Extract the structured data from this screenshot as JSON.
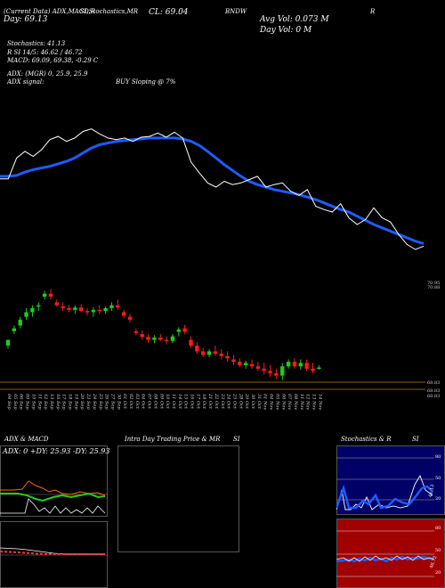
{
  "header": {
    "ticker_line": "(Current Data) ADX,MACD,R",
    "stoch_line": "SI,Stochastics,MR",
    "cl_label": "CL: 69.04",
    "symbol": "BNDW",
    "right_label": "R",
    "day_line": "Day: 69.13",
    "avg_vol": "Avg Vol: 0.073 M",
    "day_vol": "Day Vol: 0 M"
  },
  "indicators": {
    "stochastics": "Stochastics: 41.13",
    "rsi_line": "R SI 14/5: 46.62 / 46.72",
    "macd_line": "MACD: 69.09, 69.38, -0.29 C",
    "adx_line": "ADX: (MGR) 0, 25.9, 25.9",
    "adx_signal_label": "ADX signal:",
    "adx_signal_value": "BUY Sloping @ 7%"
  },
  "price_axis": {
    "top_labels": [
      "70.95",
      "70.88"
    ],
    "bottom_labels": [
      "68.83",
      "68.83",
      "68.83"
    ]
  },
  "dates": [
    "04 Sep",
    "05 Sep",
    "06 Sep",
    "09 Sep",
    "10 Sep",
    "11 Sep",
    "12 Sep",
    "13 Sep",
    "16 Sep",
    "17 Sep",
    "18 Sep",
    "19 Sep",
    "20 Sep",
    "23 Sep",
    "24 Sep",
    "25 Sep",
    "26 Sep",
    "27 Sep",
    "30 Sep",
    "01 Oct",
    "02 Oct",
    "03 Oct",
    "04 Oct",
    "07 Oct",
    "08 Oct",
    "09 Oct",
    "10 Oct",
    "11 Oct",
    "14 Oct",
    "15 Oct",
    "16 Oct",
    "17 Oct",
    "18 Oct",
    "21 Oct",
    "22 Oct",
    "23 Oct",
    "24 Oct",
    "25 Oct",
    "28 Oct",
    "29 Oct",
    "30 Oct",
    "31 Oct",
    "01 Nov",
    "04 Nov",
    "05 Nov",
    "06 Nov",
    "07 Nov",
    "08 Nov",
    "11 Nov",
    "12 Nov",
    "13 Nov",
    "14 Nov"
  ],
  "panels": {
    "adx_title": "ADX & MACD",
    "adx_readout": "ADX: 0  +DY: 25.93  -DY: 25.93",
    "intraday_title": "Intra Day Trading Price & MR",
    "intraday_si": "SI",
    "stoch_title": "Stochastics & R",
    "stoch_si": "SI",
    "stoch_axis": [
      "80",
      "50",
      "20"
    ],
    "stoch_value": "41.13",
    "rsi_axis": [
      "80",
      "50",
      "20"
    ],
    "rsi_value": "46.72"
  },
  "colors": {
    "background": "#000000",
    "price_line": "#ffffff",
    "moving_average": "#1e5bff",
    "up_candle": "#1fcc1f",
    "down_candle": "#ff1a1a",
    "rsi_panel_bg": "#a00000",
    "stoch_panel_bg": "#000066",
    "level_line": "#b8860b"
  },
  "chart_data": {
    "type": "line",
    "x": [
      "04 Sep",
      "05 Sep",
      "06 Sep",
      "09 Sep",
      "10 Sep",
      "11 Sep",
      "12 Sep",
      "13 Sep",
      "16 Sep",
      "17 Sep",
      "18 Sep",
      "19 Sep",
      "20 Sep",
      "23 Sep",
      "24 Sep",
      "25 Sep",
      "26 Sep",
      "27 Sep",
      "30 Sep",
      "01 Oct",
      "02 Oct",
      "03 Oct",
      "04 Oct",
      "07 Oct",
      "08 Oct",
      "09 Oct",
      "10 Oct",
      "11 Oct",
      "14 Oct",
      "15 Oct",
      "16 Oct",
      "17 Oct",
      "18 Oct",
      "21 Oct",
      "22 Oct",
      "23 Oct",
      "24 Oct",
      "25 Oct",
      "28 Oct",
      "29 Oct",
      "30 Oct",
      "31 Oct",
      "01 Nov",
      "04 Nov",
      "05 Nov",
      "06 Nov",
      "07 Nov",
      "08 Nov",
      "11 Nov",
      "12 Nov",
      "13 Nov",
      "14 Nov"
    ],
    "series": [
      {
        "values": [
          69.85,
          69.85,
          70.1,
          70.18,
          70.12,
          70.2,
          70.32,
          70.36,
          70.3,
          70.34,
          70.42,
          70.45,
          70.39,
          70.34,
          70.32,
          70.34,
          70.3,
          70.35,
          70.36,
          70.4,
          70.35,
          70.41,
          70.34,
          70.05,
          69.92,
          69.8,
          69.75,
          69.82,
          69.78,
          69.8,
          69.84,
          69.88,
          69.75,
          69.78,
          69.8,
          69.7,
          69.65,
          69.72,
          69.52,
          69.48,
          69.45,
          69.55,
          69.38,
          69.3,
          69.36,
          69.5,
          69.38,
          69.33,
          69.18,
          69.06,
          69.0,
          69.04
        ]
      },
      {
        "values": [
          69.88,
          69.88,
          69.89,
          69.93,
          69.96,
          69.98,
          70.0,
          70.03,
          70.06,
          70.1,
          70.16,
          70.22,
          70.26,
          70.28,
          70.3,
          70.31,
          70.32,
          70.33,
          70.34,
          70.34,
          70.34,
          70.34,
          70.33,
          70.3,
          70.25,
          70.18,
          70.1,
          70.02,
          69.95,
          69.88,
          69.82,
          69.78,
          69.75,
          69.72,
          69.7,
          69.68,
          69.66,
          69.63,
          69.6,
          69.56,
          69.52,
          69.48,
          69.45,
          69.4,
          69.35,
          69.3,
          69.26,
          69.22,
          69.18,
          69.14,
          69.1,
          69.07
        ]
      }
    ],
    "candles": [
      {
        "o": 69.2,
        "h": 69.3,
        "l": 69.15,
        "c": 69.3
      },
      {
        "o": 69.45,
        "h": 69.55,
        "l": 69.4,
        "c": 69.5
      },
      {
        "o": 69.55,
        "h": 69.7,
        "l": 69.5,
        "c": 69.65
      },
      {
        "o": 69.7,
        "h": 69.85,
        "l": 69.65,
        "c": 69.78
      },
      {
        "o": 69.78,
        "h": 69.9,
        "l": 69.7,
        "c": 69.85
      },
      {
        "o": 69.88,
        "h": 69.95,
        "l": 69.8,
        "c": 69.9
      },
      {
        "o": 70.05,
        "h": 70.15,
        "l": 70.0,
        "c": 70.1
      },
      {
        "o": 70.1,
        "h": 70.18,
        "l": 70.0,
        "c": 70.05
      },
      {
        "o": 69.95,
        "h": 70.0,
        "l": 69.88,
        "c": 69.9
      },
      {
        "o": 69.88,
        "h": 69.95,
        "l": 69.8,
        "c": 69.85
      },
      {
        "o": 69.85,
        "h": 69.9,
        "l": 69.78,
        "c": 69.82
      },
      {
        "o": 69.82,
        "h": 69.9,
        "l": 69.75,
        "c": 69.86
      },
      {
        "o": 69.86,
        "h": 69.92,
        "l": 69.78,
        "c": 69.8
      },
      {
        "o": 69.8,
        "h": 69.85,
        "l": 69.72,
        "c": 69.78
      },
      {
        "o": 69.78,
        "h": 69.86,
        "l": 69.7,
        "c": 69.82
      },
      {
        "o": 69.82,
        "h": 69.9,
        "l": 69.75,
        "c": 69.8
      },
      {
        "o": 69.8,
        "h": 69.88,
        "l": 69.75,
        "c": 69.85
      },
      {
        "o": 69.85,
        "h": 69.95,
        "l": 69.8,
        "c": 69.9
      },
      {
        "o": 69.9,
        "h": 70.0,
        "l": 69.82,
        "c": 69.86
      },
      {
        "o": 69.78,
        "h": 69.82,
        "l": 69.68,
        "c": 69.72
      },
      {
        "o": 69.7,
        "h": 69.75,
        "l": 69.6,
        "c": 69.65
      },
      {
        "o": 69.45,
        "h": 69.5,
        "l": 69.38,
        "c": 69.42
      },
      {
        "o": 69.4,
        "h": 69.46,
        "l": 69.3,
        "c": 69.35
      },
      {
        "o": 69.35,
        "h": 69.4,
        "l": 69.25,
        "c": 69.3
      },
      {
        "o": 69.3,
        "h": 69.38,
        "l": 69.24,
        "c": 69.34
      },
      {
        "o": 69.34,
        "h": 69.4,
        "l": 69.28,
        "c": 69.3
      },
      {
        "o": 69.3,
        "h": 69.36,
        "l": 69.22,
        "c": 69.28
      },
      {
        "o": 69.28,
        "h": 69.4,
        "l": 69.24,
        "c": 69.36
      },
      {
        "o": 69.44,
        "h": 69.52,
        "l": 69.36,
        "c": 69.48
      },
      {
        "o": 69.5,
        "h": 69.56,
        "l": 69.4,
        "c": 69.44
      },
      {
        "o": 69.3,
        "h": 69.36,
        "l": 69.16,
        "c": 69.2
      },
      {
        "o": 69.2,
        "h": 69.26,
        "l": 69.06,
        "c": 69.1
      },
      {
        "o": 69.1,
        "h": 69.16,
        "l": 69.0,
        "c": 69.04
      },
      {
        "o": 69.04,
        "h": 69.14,
        "l": 69.0,
        "c": 69.1
      },
      {
        "o": 69.1,
        "h": 69.2,
        "l": 69.02,
        "c": 69.06
      },
      {
        "o": 69.06,
        "h": 69.14,
        "l": 68.96,
        "c": 69.02
      },
      {
        "o": 69.02,
        "h": 69.1,
        "l": 68.92,
        "c": 68.98
      },
      {
        "o": 68.96,
        "h": 69.04,
        "l": 68.86,
        "c": 68.92
      },
      {
        "o": 68.92,
        "h": 68.98,
        "l": 68.82,
        "c": 68.86
      },
      {
        "o": 68.86,
        "h": 68.94,
        "l": 68.8,
        "c": 68.9
      },
      {
        "o": 68.88,
        "h": 68.96,
        "l": 68.8,
        "c": 68.84
      },
      {
        "o": 68.84,
        "h": 68.92,
        "l": 68.76,
        "c": 68.8
      },
      {
        "o": 68.8,
        "h": 68.9,
        "l": 68.7,
        "c": 68.76
      },
      {
        "o": 68.76,
        "h": 68.86,
        "l": 68.66,
        "c": 68.72
      },
      {
        "o": 68.72,
        "h": 68.8,
        "l": 68.62,
        "c": 68.68
      },
      {
        "o": 68.68,
        "h": 68.9,
        "l": 68.6,
        "c": 68.84
      },
      {
        "o": 68.84,
        "h": 68.96,
        "l": 68.8,
        "c": 68.92
      },
      {
        "o": 68.92,
        "h": 68.98,
        "l": 68.8,
        "c": 68.84
      },
      {
        "o": 68.84,
        "h": 68.96,
        "l": 68.78,
        "c": 68.9
      },
      {
        "o": 68.9,
        "h": 68.96,
        "l": 68.76,
        "c": 68.8
      },
      {
        "o": 68.8,
        "h": 68.9,
        "l": 68.72,
        "c": 68.76
      },
      {
        "o": 68.82,
        "h": 68.86,
        "l": 68.78,
        "c": 68.82
      }
    ],
    "ylim": [
      68.5,
      70.5
    ]
  }
}
